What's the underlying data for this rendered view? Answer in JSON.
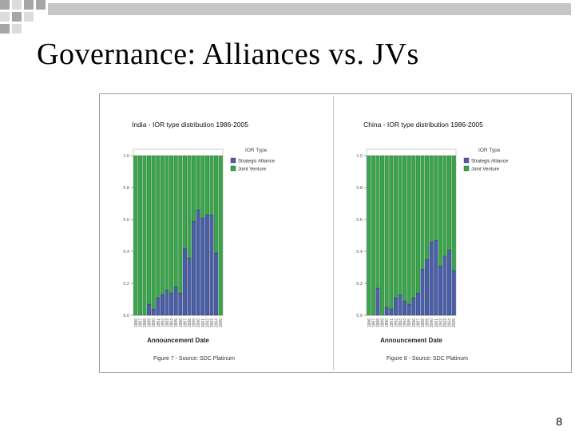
{
  "slide": {
    "title": "Governance: Alliances vs. JVs",
    "page_number": "8"
  },
  "colors": {
    "strategic_alliance": "#4a5fa8",
    "joint_venture": "#3aa64c",
    "deco_grey": "#a6a6a6",
    "deco_light": "#dcdcdc"
  },
  "chart_data": [
    {
      "id": "india",
      "type": "bar",
      "stacked": true,
      "title": "India - IOR type distribution 1986-2005",
      "xlabel": "Announcement Date",
      "ylabel": "",
      "ylim": [
        0,
        1
      ],
      "yticks": [
        "0.0",
        "0.2",
        "0.4",
        "0.6",
        "0.8",
        "1.0"
      ],
      "legend": {
        "title": "IOR Type",
        "position": "top-right"
      },
      "caption": "Figure 7 - Source: SDC Platinum",
      "categories": [
        "1986",
        "1987",
        "1988",
        "1989",
        "1990",
        "1991",
        "1992",
        "1993",
        "1994",
        "1995",
        "1996",
        "1997",
        "1998",
        "1999",
        "2000",
        "2001",
        "2002",
        "2003",
        "2004",
        "2005"
      ],
      "series": [
        {
          "name": "Strategic Alliance",
          "values": [
            0.0,
            0.0,
            0.0,
            0.07,
            0.04,
            0.11,
            0.13,
            0.16,
            0.14,
            0.18,
            0.14,
            0.42,
            0.36,
            0.59,
            0.66,
            0.61,
            0.63,
            0.63,
            0.39,
            0.0
          ]
        },
        {
          "name": "Joint Venture",
          "values": [
            1.0,
            1.0,
            1.0,
            0.93,
            0.96,
            0.89,
            0.87,
            0.84,
            0.86,
            0.82,
            0.86,
            0.58,
            0.64,
            0.41,
            0.34,
            0.39,
            0.37,
            0.37,
            0.61,
            1.0
          ]
        }
      ]
    },
    {
      "id": "china",
      "type": "bar",
      "stacked": true,
      "title": "China - IOR type distribution 1986-2005",
      "xlabel": "Announcement Date",
      "ylabel": "",
      "ylim": [
        0,
        1
      ],
      "yticks": [
        "0.0",
        "0.2",
        "0.4",
        "0.6",
        "0.8",
        "1.0"
      ],
      "legend": {
        "title": "IOR Type",
        "position": "top-right"
      },
      "caption": "Figure 8 - Source: SDC Platinum",
      "categories": [
        "1986",
        "1987",
        "1988",
        "1989",
        "1990",
        "1991",
        "1992",
        "1993",
        "1994",
        "1995",
        "1996",
        "1997",
        "1998",
        "1999",
        "2000",
        "2001",
        "2002",
        "2003",
        "2004",
        "2005"
      ],
      "series": [
        {
          "name": "Strategic Alliance",
          "values": [
            0.0,
            0.0,
            0.17,
            0.0,
            0.05,
            0.04,
            0.11,
            0.13,
            0.09,
            0.07,
            0.11,
            0.14,
            0.29,
            0.35,
            0.46,
            0.47,
            0.31,
            0.37,
            0.41,
            0.28
          ]
        },
        {
          "name": "Joint Venture",
          "values": [
            1.0,
            1.0,
            0.83,
            1.0,
            0.95,
            0.96,
            0.89,
            0.87,
            0.91,
            0.93,
            0.89,
            0.86,
            0.71,
            0.65,
            0.54,
            0.53,
            0.69,
            0.63,
            0.59,
            0.72
          ]
        }
      ]
    }
  ]
}
